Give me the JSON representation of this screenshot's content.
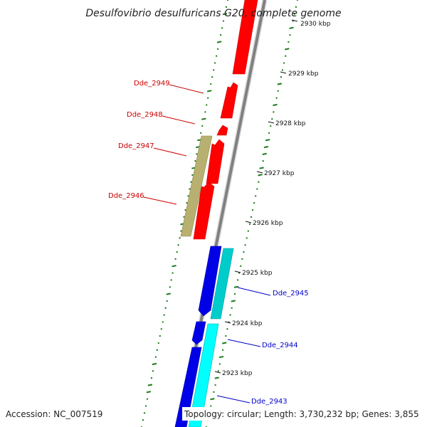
{
  "title": "Desulfovibrio desulfuricans G20, complete genome",
  "accession": "Accession: NC_007519",
  "topology": "Topology: circular; Length: 3,730,232 bp; Genes: 3,855",
  "ticks": [
    "2930 kbp",
    "2929 kbp",
    "2928 kbp",
    "2927 kbp",
    "2926 kbp",
    "2925 kbp",
    "2924 kbp",
    "2923 kbp"
  ],
  "genes_reverse": [
    {
      "name": "Dde_2949",
      "color": "#cc0000"
    },
    {
      "name": "Dde_2948",
      "color": "#cc0000"
    },
    {
      "name": "Dde_2947",
      "color": "#cc0000"
    },
    {
      "name": "Dde_2946",
      "color": "#cc0000"
    }
  ],
  "genes_forward": [
    {
      "name": "Dde_2945",
      "color": "#0000cc"
    },
    {
      "name": "Dde_2944",
      "color": "#0000cc"
    },
    {
      "name": "Dde_2943",
      "color": "#0000cc"
    }
  ],
  "colors": {
    "backbone": "#808080",
    "reverse_cds": "#ff0000",
    "forward_cds": "#0000e6",
    "forward_other": "#00e6e6",
    "reverse_other": "#b8b070",
    "gc_skew": "#1a7a1a"
  }
}
